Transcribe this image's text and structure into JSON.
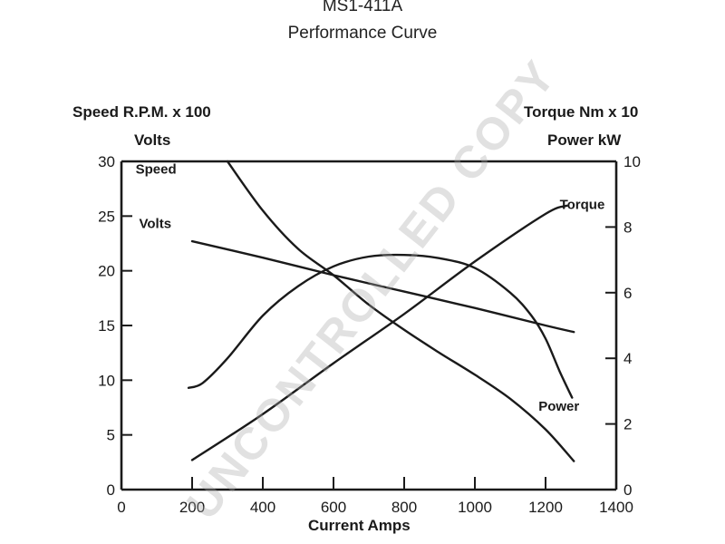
{
  "header": {
    "model": "MS1-411A",
    "subtitle": "Performance Curve"
  },
  "axes": {
    "left_title_line1": "Speed R.P.M. x 100",
    "left_title_line2": "Volts",
    "right_title_line1": "Torque Nm x 10",
    "right_title_line2": "Power kW",
    "x_title": "Current Amps"
  },
  "watermark": "UNCONTROLLED COPY",
  "chart_data": {
    "type": "line",
    "title": "MS1-411A Performance Curve",
    "xlabel": "Current Amps",
    "ylabel_left": "Speed R.P.M. x 100 / Volts",
    "ylabel_right": "Torque Nm x 10 / Power kW",
    "xlim": [
      0,
      1400
    ],
    "ylim_left": [
      0,
      30
    ],
    "ylim_right": [
      0,
      10
    ],
    "x_ticks": [
      0,
      200,
      400,
      600,
      800,
      1000,
      1200,
      1400
    ],
    "y_left_ticks": [
      0,
      5,
      10,
      15,
      20,
      25,
      30
    ],
    "y_right_ticks": [
      0,
      2,
      4,
      6,
      8,
      10
    ],
    "grid": false,
    "series": [
      {
        "name": "Speed",
        "axis": "left",
        "label_at": [
          40,
          28.9
        ],
        "x": [
          300,
          400,
          500,
          600,
          700,
          800,
          900,
          1000,
          1100,
          1200,
          1280
        ],
        "y": [
          30,
          25.5,
          22,
          19.6,
          16.9,
          14.6,
          12.5,
          10.5,
          8.3,
          5.5,
          2.6
        ]
      },
      {
        "name": "Volts",
        "axis": "left",
        "label_at": [
          50,
          23.9
        ],
        "x": [
          200,
          400,
          600,
          800,
          1000,
          1200,
          1280
        ],
        "y": [
          22.7,
          21.2,
          19.6,
          18.1,
          16.6,
          15.0,
          14.4
        ]
      },
      {
        "name": "Torque",
        "axis": "right",
        "label_at": [
          1240,
          8.55
        ],
        "x": [
          200,
          400,
          600,
          800,
          1000,
          1200,
          1260
        ],
        "y": [
          0.9,
          2.3,
          3.85,
          5.35,
          6.95,
          8.4,
          8.65
        ]
      },
      {
        "name": "Power",
        "axis": "right",
        "label_at": [
          1180,
          2.4
        ],
        "x": [
          190,
          230,
          300,
          400,
          500,
          600,
          700,
          800,
          900,
          1000,
          1100,
          1160,
          1200,
          1240,
          1275
        ],
        "y": [
          3.1,
          3.25,
          4.0,
          5.3,
          6.2,
          6.8,
          7.1,
          7.15,
          7.05,
          6.75,
          6.0,
          5.3,
          4.6,
          3.6,
          2.8
        ]
      }
    ]
  }
}
